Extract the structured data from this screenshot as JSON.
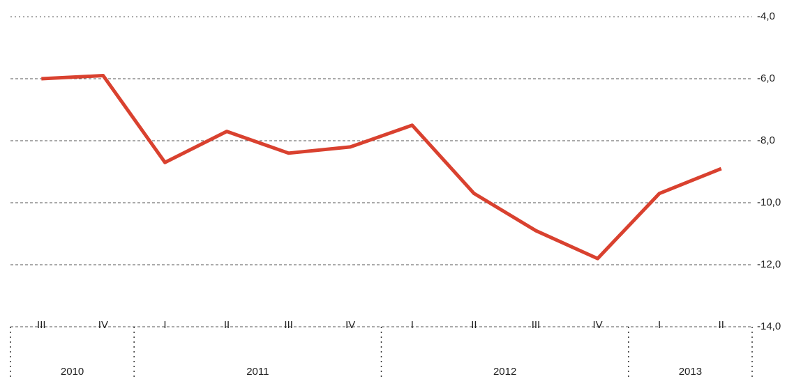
{
  "chart_data": {
    "type": "line",
    "categories": [
      "III",
      "IV",
      "I",
      "II",
      "III",
      "IV",
      "I",
      "II",
      "III",
      "IV",
      "I",
      "II"
    ],
    "groups": [
      {
        "label": "2010",
        "span": 2
      },
      {
        "label": "2011",
        "span": 4
      },
      {
        "label": "2012",
        "span": 4
      },
      {
        "label": "2013",
        "span": 2
      }
    ],
    "series": [
      {
        "color": "#d9412f",
        "values": [
          -6.0,
          -5.9,
          -8.7,
          -7.7,
          -8.4,
          -8.2,
          -7.5,
          -9.7,
          -10.9,
          -11.8,
          -9.7,
          -8.9
        ]
      }
    ],
    "ylim": [
      -14,
      -4
    ],
    "yticks": [
      {
        "value": -14,
        "label": "-14,0"
      },
      {
        "value": -12,
        "label": "-12,0"
      },
      {
        "value": -10,
        "label": "-10,0"
      },
      {
        "value": -8,
        "label": "-8,0"
      },
      {
        "value": -6,
        "label": "-6,0"
      },
      {
        "value": -4,
        "label": "-4,0"
      }
    ],
    "grid": true
  }
}
